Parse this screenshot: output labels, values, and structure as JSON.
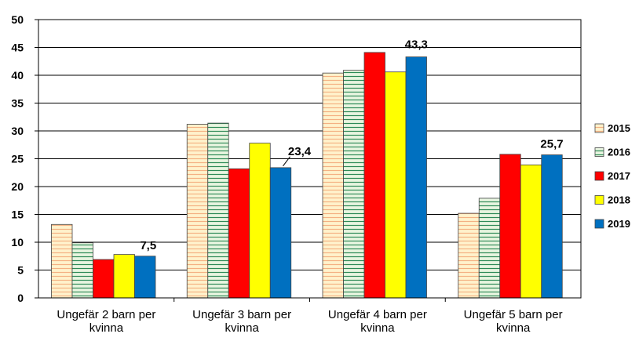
{
  "chart_data": {
    "type": "bar",
    "title": "",
    "xlabel": "",
    "ylabel": "",
    "ylim": [
      0,
      50
    ],
    "yticks": [
      "0",
      "5",
      "10",
      "15",
      "20",
      "25",
      "30",
      "35",
      "40",
      "45",
      "50"
    ],
    "grid": true,
    "legend_position": "right",
    "categories": [
      [
        "Ungefär 2 barn per",
        "kvinna"
      ],
      [
        "Ungefär 3 barn per",
        "kvinna"
      ],
      [
        "Ungefär 4 barn per",
        "kvinna"
      ],
      [
        "Ungefär 5 barn per",
        "kvinna"
      ]
    ],
    "series": [
      {
        "name": "2015",
        "values": [
          13.2,
          31.2,
          40.4,
          15.2
        ],
        "color": "#fff2cc",
        "stripe": "#f4b183"
      },
      {
        "name": "2016",
        "values": [
          9.9,
          31.4,
          40.9,
          17.9
        ],
        "color": "#e8f5e0",
        "stripe": "#2e8b57"
      },
      {
        "name": "2017",
        "values": [
          6.9,
          23.2,
          44.1,
          25.8
        ],
        "color": "#ff0000"
      },
      {
        "name": "2018",
        "values": [
          7.8,
          27.8,
          40.6,
          23.9
        ],
        "color": "#ffff00"
      },
      {
        "name": "2019",
        "values": [
          7.5,
          23.4,
          43.3,
          25.7
        ],
        "color": "#0070c0"
      }
    ],
    "data_labels": [
      {
        "series": 4,
        "category": 0,
        "text": "7,5"
      },
      {
        "series": 4,
        "category": 1,
        "text": "23,4"
      },
      {
        "series": 4,
        "category": 2,
        "text": "43,3"
      },
      {
        "series": 4,
        "category": 3,
        "text": "25,7"
      }
    ]
  }
}
